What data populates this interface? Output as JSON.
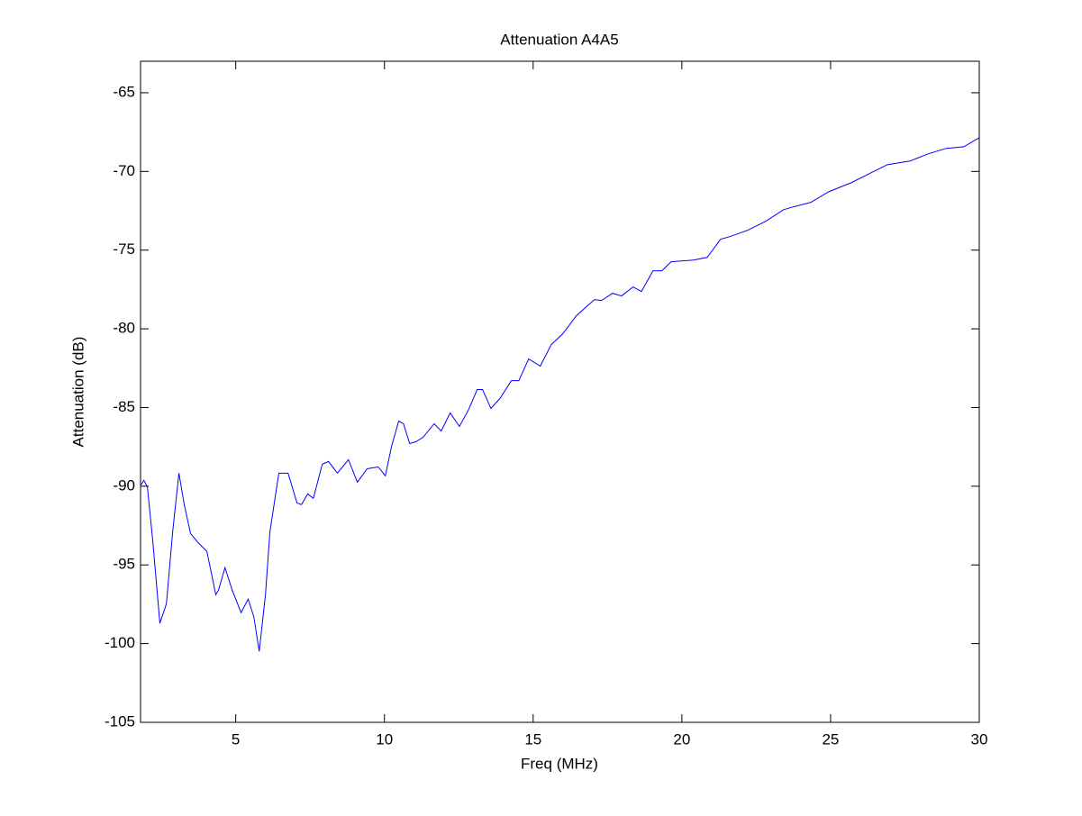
{
  "chart_data": {
    "type": "line",
    "title": "Attenuation A4A5",
    "x_label": "Freq (MHz)",
    "y_label": "Attenuation (dB)",
    "x": [
      1.82,
      1.91,
      2.03,
      2.21,
      2.45,
      2.67,
      2.88,
      3.09,
      3.27,
      3.48,
      3.73,
      4.03,
      4.33,
      4.42,
      4.64,
      4.88,
      5.18,
      5.42,
      5.61,
      5.79,
      6.0,
      6.15,
      6.45,
      6.76,
      7.06,
      7.21,
      7.42,
      7.61,
      7.91,
      8.12,
      8.42,
      8.79,
      9.09,
      9.42,
      9.79,
      10.03,
      10.24,
      10.48,
      10.64,
      10.85,
      11.06,
      11.3,
      11.67,
      11.91,
      12.21,
      12.52,
      12.82,
      13.12,
      13.3,
      13.58,
      13.88,
      14.27,
      14.52,
      14.85,
      15.24,
      15.61,
      16.0,
      16.45,
      17.06,
      17.3,
      17.67,
      17.97,
      18.36,
      18.64,
      19.03,
      19.33,
      19.64,
      20.39,
      20.85,
      21.3,
      21.61,
      22.21,
      22.82,
      23.42,
      23.73,
      24.33,
      24.94,
      25.7,
      26.3,
      26.91,
      27.67,
      28.27,
      28.88,
      29.48,
      30.0
    ],
    "values": [
      -89.91,
      -89.63,
      -90.03,
      -93.46,
      -98.71,
      -97.46,
      -92.89,
      -89.17,
      -91.17,
      -93.0,
      -93.57,
      -94.14,
      -96.89,
      -96.6,
      -95.17,
      -96.6,
      -98.03,
      -97.17,
      -98.31,
      -100.49,
      -96.89,
      -92.89,
      -89.17,
      -89.17,
      -91.06,
      -91.17,
      -90.49,
      -90.77,
      -88.6,
      -88.43,
      -89.17,
      -88.31,
      -89.74,
      -88.89,
      -88.77,
      -89.34,
      -87.46,
      -85.86,
      -86.03,
      -87.29,
      -87.17,
      -86.89,
      -86.03,
      -86.49,
      -85.34,
      -86.2,
      -85.17,
      -83.86,
      -83.86,
      -85.06,
      -84.43,
      -83.29,
      -83.29,
      -81.91,
      -82.37,
      -81.0,
      -80.31,
      -79.17,
      -78.14,
      -78.2,
      -77.74,
      -77.91,
      -77.34,
      -77.63,
      -76.31,
      -76.31,
      -75.74,
      -75.63,
      -75.46,
      -74.31,
      -74.14,
      -73.74,
      -73.17,
      -72.43,
      -72.26,
      -71.97,
      -71.29,
      -70.71,
      -70.14,
      -69.57,
      -69.34,
      -68.89,
      -68.54,
      -68.43,
      -67.86
    ],
    "color": "#0000ff",
    "xlim": [
      1.8,
      30
    ],
    "xticks": [
      5,
      10,
      15,
      20,
      25,
      30
    ],
    "ylim": [
      -105,
      -63
    ],
    "yticks": [
      -105,
      -100,
      -95,
      -90,
      -85,
      -80,
      -75,
      -70,
      -65
    ]
  }
}
